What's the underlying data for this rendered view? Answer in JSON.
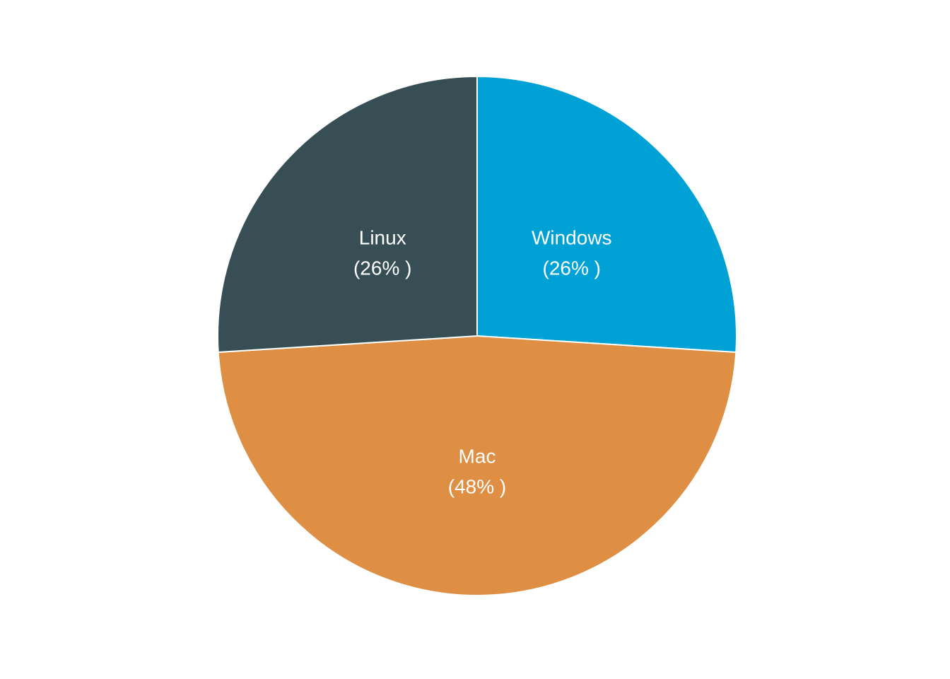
{
  "chart_data": {
    "type": "pie",
    "start_angle_deg": 0,
    "direction": "clockwise",
    "slices": [
      {
        "name": "Windows",
        "value": 26,
        "label_line_1": "Windows",
        "label_line_2": "(26% )",
        "color": "#00A1D5"
      },
      {
        "name": "Mac",
        "value": 48,
        "label_line_1": "Mac",
        "label_line_2": "(48% )",
        "color": "#DF8F44"
      },
      {
        "name": "Linux",
        "value": 26,
        "label_line_1": "Linux",
        "label_line_2": "(26% )",
        "color": "#374E55"
      }
    ]
  }
}
